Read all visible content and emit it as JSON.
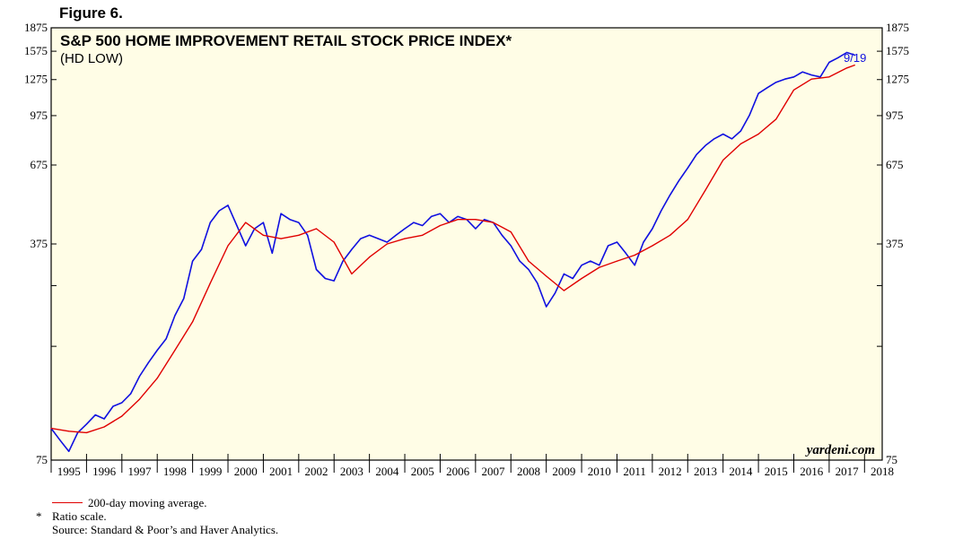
{
  "figure_label": "Figure 6.",
  "footer": {
    "legend_label": "200-day moving average.",
    "ratio_star": "*",
    "ratio_note": "Ratio scale.",
    "source": "Source: Standard & Poor’s and Haver Analytics."
  },
  "colors": {
    "background": "#fffde6",
    "price_line": "#1010e0",
    "ma_line": "#e00000",
    "axis": "#000000"
  },
  "chart_data": {
    "type": "line",
    "title": "S&P 500 HOME IMPROVEMENT RETAIL STOCK PRICE INDEX*",
    "subtitle": "(HD LOW)",
    "watermark": "yardeni.com",
    "scale": "log",
    "ylim": [
      75,
      1875
    ],
    "xlim": [
      1995,
      2018.5
    ],
    "y_ticks": [
      "1875",
      "1575",
      "1275",
      "975",
      "675",
      "375",
      "75"
    ],
    "y_tick_values": [
      1875,
      1575,
      1275,
      975,
      675,
      375,
      75
    ],
    "y_minor_ticks": [
      1575,
      1275,
      975,
      675,
      375,
      75,
      175,
      275
    ],
    "x_ticks": [
      "1995",
      "1996",
      "1997",
      "1998",
      "1999",
      "2000",
      "2001",
      "2002",
      "2003",
      "2004",
      "2005",
      "2006",
      "2007",
      "2008",
      "2009",
      "2010",
      "2011",
      "2012",
      "2013",
      "2014",
      "2015",
      "2016",
      "2017",
      "2018"
    ],
    "end_label": "9/19",
    "series": [
      {
        "name": "S&P 500 Home Improvement Retail Stock Price Index",
        "color": "#1010e0",
        "x": [
          1995.0,
          1995.25,
          1995.5,
          1995.75,
          1996.0,
          1996.25,
          1996.5,
          1996.75,
          1997.0,
          1997.25,
          1997.5,
          1997.75,
          1998.0,
          1998.25,
          1998.5,
          1998.75,
          1999.0,
          1999.25,
          1999.5,
          1999.75,
          2000.0,
          2000.25,
          2000.5,
          2000.75,
          2001.0,
          2001.25,
          2001.5,
          2001.75,
          2002.0,
          2002.25,
          2002.5,
          2002.75,
          2003.0,
          2003.25,
          2003.5,
          2003.75,
          2004.0,
          2004.25,
          2004.5,
          2004.75,
          2005.0,
          2005.25,
          2005.5,
          2005.75,
          2006.0,
          2006.25,
          2006.5,
          2006.75,
          2007.0,
          2007.25,
          2007.5,
          2007.75,
          2008.0,
          2008.25,
          2008.5,
          2008.75,
          2009.0,
          2009.25,
          2009.5,
          2009.75,
          2010.0,
          2010.25,
          2010.5,
          2010.75,
          2011.0,
          2011.25,
          2011.5,
          2011.75,
          2012.0,
          2012.25,
          2012.5,
          2012.75,
          2013.0,
          2013.25,
          2013.5,
          2013.75,
          2014.0,
          2014.25,
          2014.5,
          2014.75,
          2015.0,
          2015.25,
          2015.5,
          2015.75,
          2016.0,
          2016.25,
          2016.5,
          2016.75,
          2017.0,
          2017.25,
          2017.5,
          2017.72
        ],
        "values": [
          95,
          87,
          80,
          92,
          98,
          105,
          102,
          112,
          115,
          123,
          140,
          155,
          170,
          185,
          220,
          250,
          330,
          360,
          440,
          480,
          500,
          430,
          370,
          420,
          440,
          350,
          470,
          450,
          440,
          400,
          310,
          290,
          285,
          330,
          360,
          390,
          400,
          390,
          380,
          400,
          420,
          440,
          430,
          460,
          470,
          440,
          460,
          450,
          420,
          450,
          440,
          400,
          370,
          330,
          310,
          280,
          235,
          260,
          300,
          290,
          320,
          330,
          320,
          370,
          380,
          350,
          320,
          380,
          420,
          480,
          540,
          600,
          660,
          730,
          780,
          820,
          850,
          820,
          870,
          980,
          1150,
          1200,
          1250,
          1280,
          1300,
          1350,
          1320,
          1300,
          1450,
          1500,
          1560,
          1530
        ]
      },
      {
        "name": "200-day moving average",
        "color": "#e00000",
        "x": [
          1995.0,
          1995.5,
          1996.0,
          1996.5,
          1997.0,
          1997.5,
          1998.0,
          1998.5,
          1999.0,
          1999.5,
          2000.0,
          2000.5,
          2001.0,
          2001.5,
          2002.0,
          2002.5,
          2003.0,
          2003.5,
          2004.0,
          2004.5,
          2005.0,
          2005.5,
          2006.0,
          2006.5,
          2007.0,
          2007.5,
          2008.0,
          2008.5,
          2009.0,
          2009.5,
          2010.0,
          2010.5,
          2011.0,
          2011.5,
          2012.0,
          2012.5,
          2013.0,
          2013.5,
          2014.0,
          2014.5,
          2015.0,
          2015.5,
          2016.0,
          2016.5,
          2017.0,
          2017.5,
          2017.72
        ],
        "values": [
          95,
          93,
          92,
          96,
          104,
          118,
          138,
          170,
          210,
          280,
          370,
          440,
          400,
          390,
          400,
          420,
          380,
          300,
          340,
          375,
          390,
          400,
          430,
          450,
          450,
          440,
          410,
          330,
          295,
          265,
          290,
          315,
          330,
          345,
          370,
          400,
          450,
          560,
          700,
          790,
          850,
          950,
          1180,
          1280,
          1300,
          1390,
          1420
        ]
      }
    ]
  }
}
